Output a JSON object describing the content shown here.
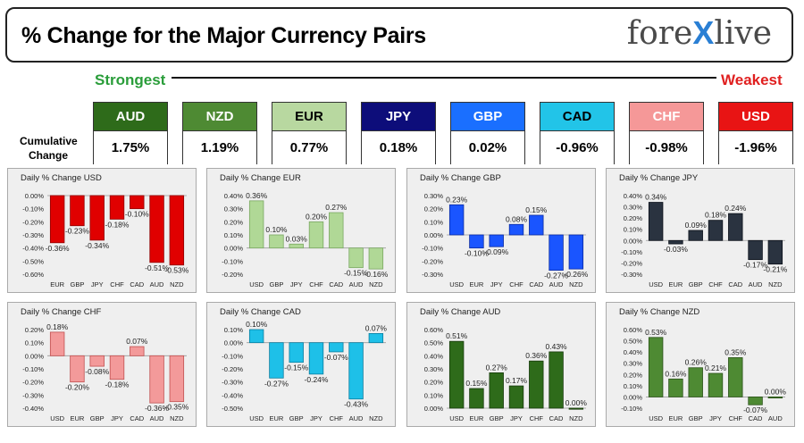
{
  "header": {
    "title": "% Change for the Major Currency Pairs",
    "logo_left": "fore",
    "logo_x": "X",
    "logo_right": "live"
  },
  "labels": {
    "strongest": "Strongest",
    "weakest": "Weakest",
    "cumulative": "Cumulative Change"
  },
  "currencies": [
    {
      "code": "AUD",
      "value": "1.75%",
      "bg": "#2e6b1a",
      "fg": "#ffffff"
    },
    {
      "code": "NZD",
      "value": "1.19%",
      "bg": "#4e8a33",
      "fg": "#ffffff"
    },
    {
      "code": "EUR",
      "value": "0.77%",
      "bg": "#b8d8a0",
      "fg": "#000000"
    },
    {
      "code": "JPY",
      "value": "0.18%",
      "bg": "#0d0d7a",
      "fg": "#ffffff"
    },
    {
      "code": "GBP",
      "value": "0.02%",
      "bg": "#1a6fff",
      "fg": "#ffffff"
    },
    {
      "code": "CAD",
      "value": "-0.96%",
      "bg": "#22c4e8",
      "fg": "#000000"
    },
    {
      "code": "CHF",
      "value": "-0.98%",
      "bg": "#f59898",
      "fg": "#ffffff"
    },
    {
      "code": "USD",
      "value": "-1.96%",
      "bg": "#e81414",
      "fg": "#ffffff"
    }
  ],
  "chart_data": [
    {
      "type": "bar",
      "title": "Daily % Change USD",
      "categories": [
        "EUR",
        "GBP",
        "JPY",
        "CHF",
        "CAD",
        "AUD",
        "NZD"
      ],
      "values": [
        -0.36,
        -0.23,
        -0.34,
        -0.18,
        -0.1,
        -0.51,
        -0.53
      ],
      "labels": [
        "-0.36%",
        "-0.23%",
        "-0.34%",
        "-0.18%",
        "-0.10%",
        "-0.51%",
        "-0.53%"
      ],
      "yticks": [
        "0.00%",
        "-0.10%",
        "-0.20%",
        "-0.30%",
        "-0.40%",
        "-0.50%",
        "-0.60%"
      ],
      "ylim": [
        -0.6,
        0.0
      ],
      "color": "#e00000",
      "color_dark": "#900000"
    },
    {
      "type": "bar",
      "title": "Daily % Change EUR",
      "categories": [
        "USD",
        "GBP",
        "JPY",
        "CHF",
        "CAD",
        "AUD",
        "NZD"
      ],
      "values": [
        0.36,
        0.1,
        0.03,
        0.2,
        0.27,
        -0.15,
        -0.16
      ],
      "labels": [
        "0.36%",
        "0.10%",
        "0.03%",
        "0.20%",
        "0.27%",
        "-0.15%",
        "-0.16%"
      ],
      "yticks": [
        "0.40%",
        "0.30%",
        "0.20%",
        "0.10%",
        "0.00%",
        "-0.10%",
        "-0.20%"
      ],
      "ylim": [
        -0.2,
        0.4
      ],
      "color": "#b0d896",
      "color_dark": "#7aa862"
    },
    {
      "type": "bar",
      "title": "Daily % Change GBP",
      "categories": [
        "USD",
        "EUR",
        "JPY",
        "CHF",
        "CAD",
        "AUD",
        "NZD"
      ],
      "values": [
        0.23,
        -0.1,
        -0.09,
        0.08,
        0.15,
        -0.27,
        -0.26
      ],
      "labels": [
        "0.23%",
        "-0.10%",
        "-0.09%",
        "0.08%",
        "0.15%",
        "-0.27%",
        "-0.26%"
      ],
      "yticks": [
        "0.30%",
        "0.20%",
        "0.10%",
        "0.00%",
        "-0.10%",
        "-0.20%",
        "-0.30%"
      ],
      "ylim": [
        -0.3,
        0.3
      ],
      "color": "#1a55ff",
      "color_dark": "#0a2aa0"
    },
    {
      "type": "bar",
      "title": "Daily % Change JPY",
      "categories": [
        "USD",
        "EUR",
        "GBP",
        "CHF",
        "CAD",
        "AUD",
        "NZD"
      ],
      "values": [
        0.34,
        -0.03,
        0.09,
        0.18,
        0.24,
        -0.17,
        -0.21
      ],
      "labels": [
        "0.34%",
        "-0.03%",
        "0.09%",
        "0.18%",
        "0.24%",
        "-0.17%",
        "-0.21%"
      ],
      "yticks": [
        "0.40%",
        "0.30%",
        "0.20%",
        "0.10%",
        "0.00%",
        "-0.10%",
        "-0.20%",
        "-0.30%"
      ],
      "ylim": [
        -0.3,
        0.4
      ],
      "color": "#2a3340",
      "color_dark": "#0a0f18"
    },
    {
      "type": "bar",
      "title": "Daily % Change CHF",
      "categories": [
        "USD",
        "EUR",
        "GBP",
        "JPY",
        "CAD",
        "AUD",
        "NZD"
      ],
      "values": [
        0.18,
        -0.2,
        -0.08,
        -0.18,
        0.07,
        -0.36,
        -0.35
      ],
      "labels": [
        "0.18%",
        "-0.20%",
        "-0.08%",
        "-0.18%",
        "0.07%",
        "-0.36%",
        "-0.35%"
      ],
      "yticks": [
        "0.20%",
        "0.10%",
        "0.00%",
        "-0.10%",
        "-0.20%",
        "-0.30%",
        "-0.40%"
      ],
      "ylim": [
        -0.4,
        0.2
      ],
      "color": "#f39a9a",
      "color_dark": "#c05050"
    },
    {
      "type": "bar",
      "title": "Daily % Change CAD",
      "categories": [
        "USD",
        "EUR",
        "GBP",
        "JPY",
        "CHF",
        "AUD",
        "NZD"
      ],
      "values": [
        0.1,
        -0.27,
        -0.15,
        -0.24,
        -0.07,
        -0.43,
        0.07
      ],
      "labels": [
        "0.10%",
        "-0.27%",
        "-0.15%",
        "-0.24%",
        "-0.07%",
        "-0.43%",
        "0.07%"
      ],
      "yticks": [
        "0.10%",
        "0.00%",
        "-0.10%",
        "-0.20%",
        "-0.30%",
        "-0.40%",
        "-0.50%"
      ],
      "ylim": [
        -0.5,
        0.1
      ],
      "color": "#1ec0e8",
      "color_dark": "#0a7ea0"
    },
    {
      "type": "bar",
      "title": "Daily % Change AUD",
      "categories": [
        "USD",
        "EUR",
        "GBP",
        "JPY",
        "CHF",
        "CAD",
        "NZD"
      ],
      "values": [
        0.51,
        0.15,
        0.27,
        0.17,
        0.36,
        0.43,
        0.0
      ],
      "labels": [
        "0.51%",
        "0.15%",
        "0.27%",
        "0.17%",
        "0.36%",
        "0.43%",
        "0.00%"
      ],
      "yticks": [
        "0.60%",
        "0.50%",
        "0.40%",
        "0.30%",
        "0.20%",
        "0.10%",
        "0.00%"
      ],
      "ylim": [
        0.0,
        0.6
      ],
      "color": "#2e6b1a",
      "color_dark": "#173a0c"
    },
    {
      "type": "bar",
      "title": "Daily % Change NZD",
      "categories": [
        "USD",
        "EUR",
        "GBP",
        "JPY",
        "CHF",
        "CAD",
        "AUD"
      ],
      "values": [
        0.53,
        0.16,
        0.26,
        0.21,
        0.35,
        -0.07,
        0.0
      ],
      "labels": [
        "0.53%",
        "0.16%",
        "0.26%",
        "0.21%",
        "0.35%",
        "-0.07%",
        "0.00%"
      ],
      "yticks": [
        "0.60%",
        "0.50%",
        "0.40%",
        "0.30%",
        "0.20%",
        "0.10%",
        "0.00%",
        "-0.10%"
      ],
      "ylim": [
        -0.1,
        0.6
      ],
      "color": "#4e8a33",
      "color_dark": "#2a5218"
    }
  ]
}
